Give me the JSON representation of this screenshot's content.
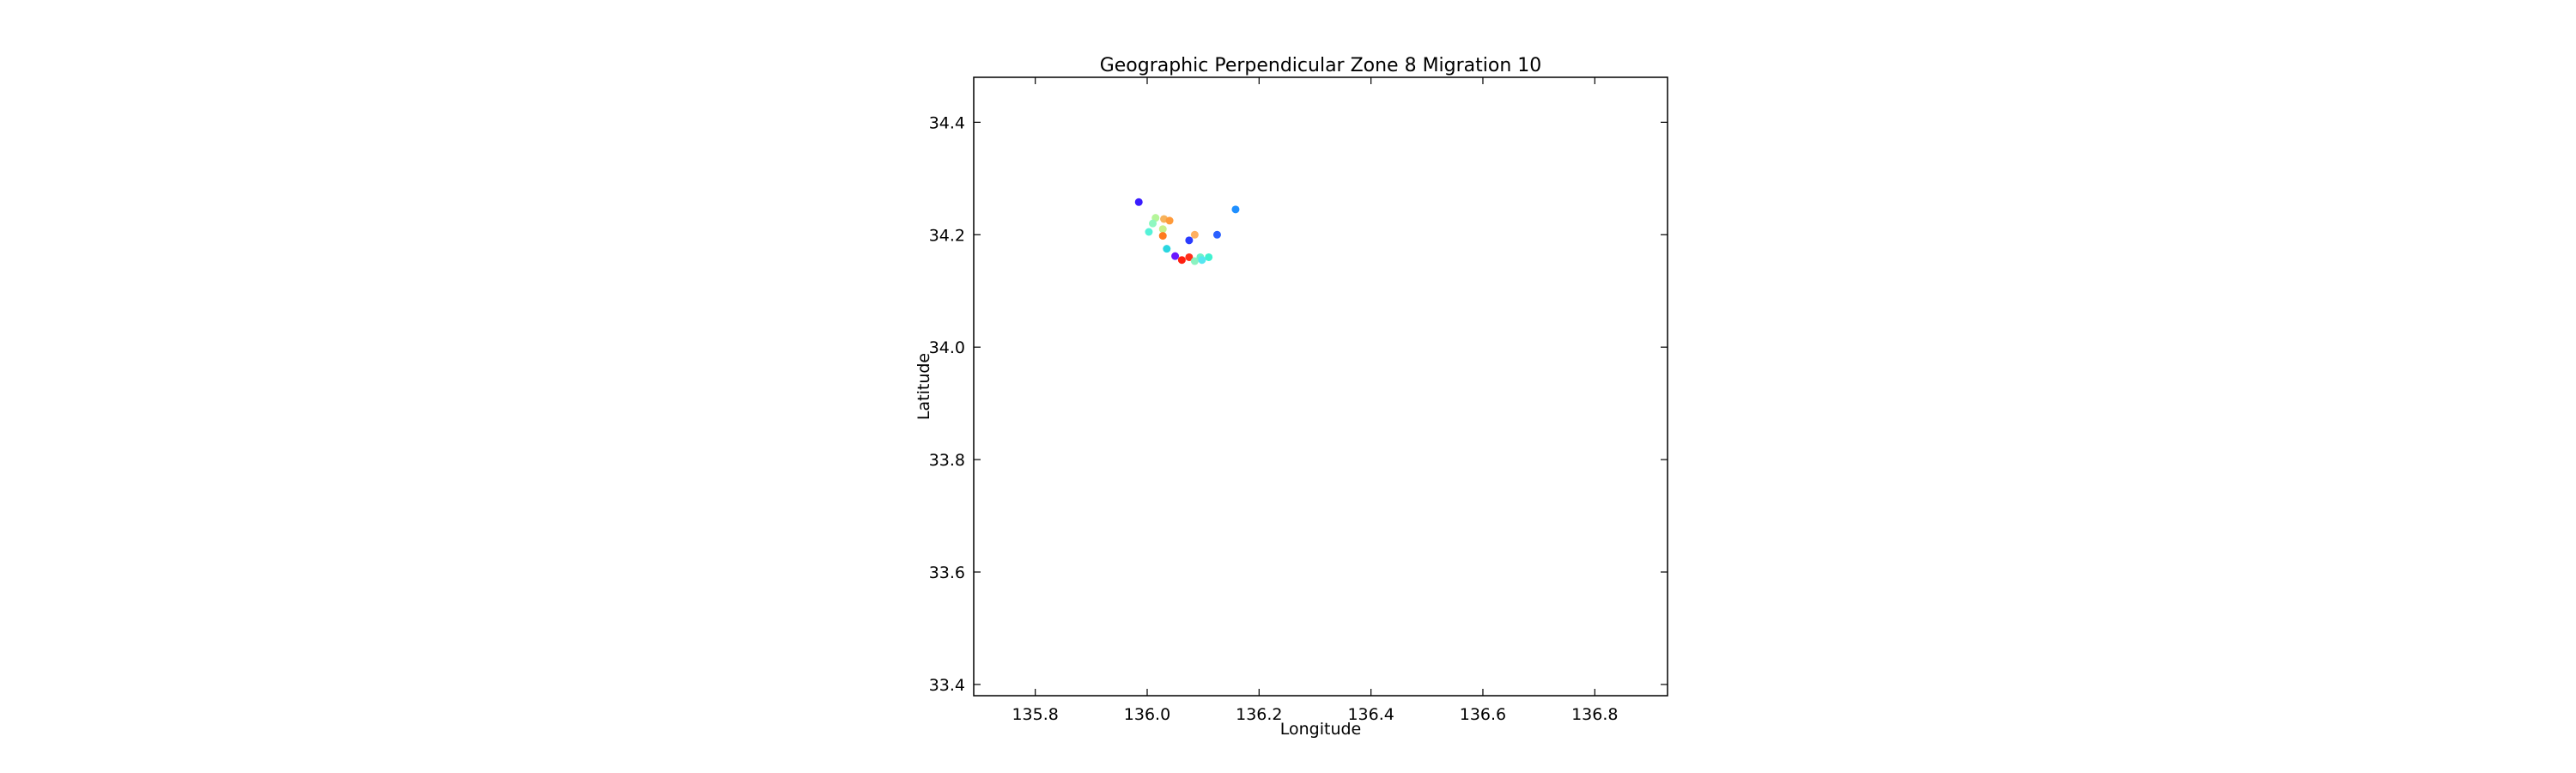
{
  "chart_data": {
    "type": "scatter",
    "title": "Geographic Perpendicular Zone 8 Migration 10",
    "xlabel": "Longitude",
    "ylabel": "Latitude",
    "xlim": [
      135.69,
      136.93
    ],
    "ylim": [
      33.38,
      34.48
    ],
    "xticks": [
      "135.8",
      "136.0",
      "136.2",
      "136.4",
      "136.6",
      "136.8"
    ],
    "yticks": [
      "33.4",
      "33.6",
      "33.8",
      "34.0",
      "34.2",
      "34.4"
    ],
    "grid": false,
    "legend": "none",
    "points": [
      {
        "x": 135.985,
        "y": 34.258,
        "color": "#3a1cff"
      },
      {
        "x": 136.158,
        "y": 34.245,
        "color": "#1f8fff"
      },
      {
        "x": 136.015,
        "y": 34.23,
        "color": "#b5f59a"
      },
      {
        "x": 136.03,
        "y": 34.228,
        "color": "#f7b25a"
      },
      {
        "x": 136.04,
        "y": 34.225,
        "color": "#ff9a3a"
      },
      {
        "x": 136.01,
        "y": 34.22,
        "color": "#8ff7c0"
      },
      {
        "x": 136.028,
        "y": 34.21,
        "color": "#c8f08a"
      },
      {
        "x": 136.003,
        "y": 34.205,
        "color": "#55f2d8"
      },
      {
        "x": 136.028,
        "y": 34.198,
        "color": "#ff7a1f"
      },
      {
        "x": 136.085,
        "y": 34.2,
        "color": "#ffb060"
      },
      {
        "x": 136.125,
        "y": 34.2,
        "color": "#2a60ff"
      },
      {
        "x": 136.075,
        "y": 34.19,
        "color": "#2a3cff"
      },
      {
        "x": 136.035,
        "y": 34.175,
        "color": "#2ad6e0"
      },
      {
        "x": 136.05,
        "y": 34.162,
        "color": "#6a18ff"
      },
      {
        "x": 136.075,
        "y": 34.16,
        "color": "#ff2f1a"
      },
      {
        "x": 136.095,
        "y": 34.16,
        "color": "#6af2c8"
      },
      {
        "x": 136.11,
        "y": 34.16,
        "color": "#40f2d0"
      },
      {
        "x": 136.062,
        "y": 34.155,
        "color": "#ff1f10"
      },
      {
        "x": 136.085,
        "y": 34.153,
        "color": "#8af2c0"
      },
      {
        "x": 136.098,
        "y": 34.155,
        "color": "#55e6f0"
      }
    ]
  }
}
